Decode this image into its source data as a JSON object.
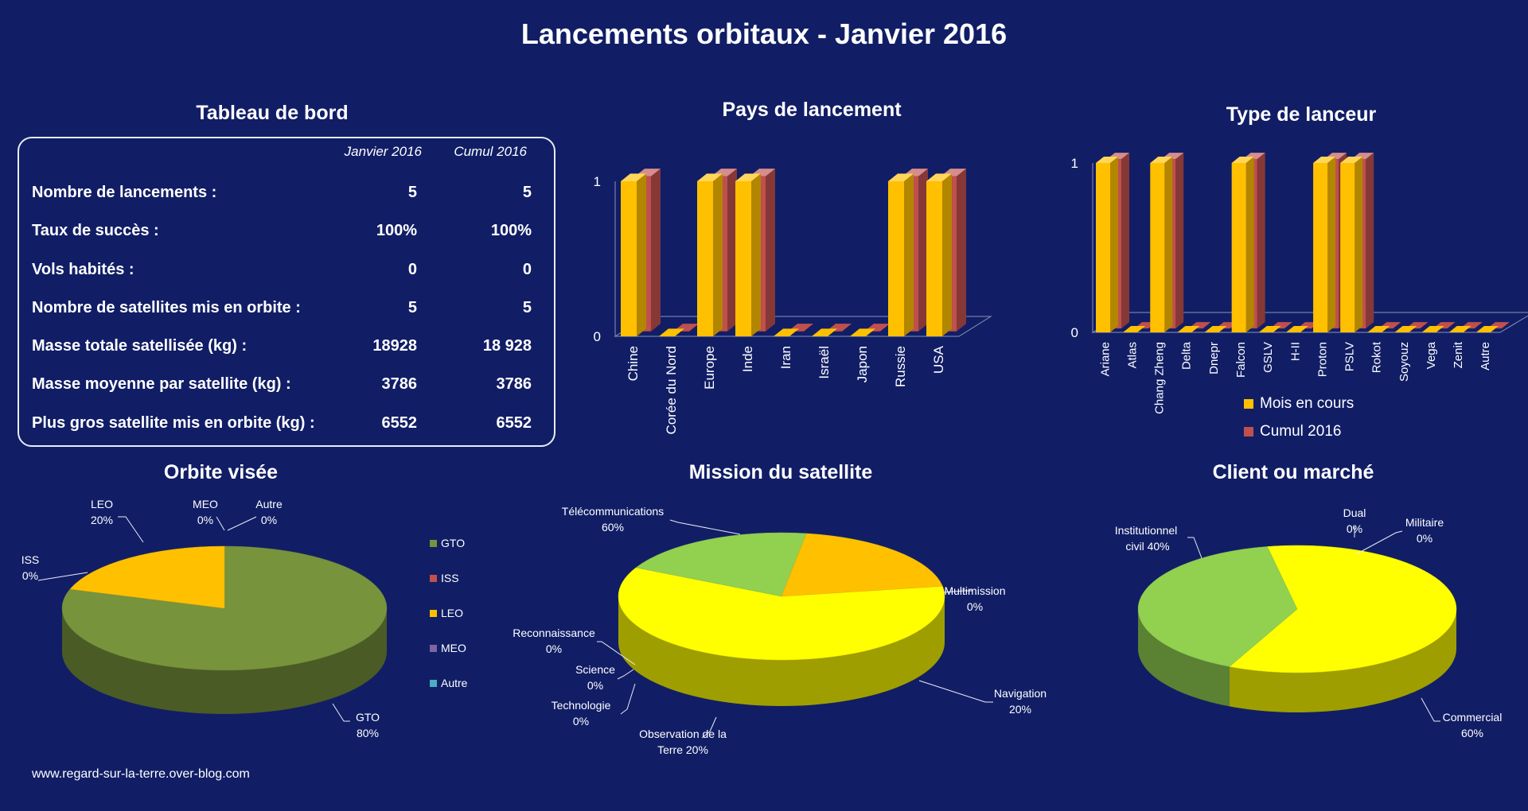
{
  "title": "Lancements orbitaux - Janvier 2016",
  "footer": "www.regard-sur-la-terre.over-blog.com",
  "colors": {
    "background": "#111e66",
    "mois": "#ffc000",
    "cumul": "#c0504d",
    "gto": "#77933c",
    "iss": "#c0504d",
    "leo": "#ffc000",
    "meo": "#8064a2",
    "autre": "#4bacc6",
    "yellow": "#ffff00",
    "green": "#92d050"
  },
  "dashboard": {
    "title": "Tableau de bord",
    "col1": "Janvier 2016",
    "col2": "Cumul 2016",
    "rows": [
      {
        "label": "Nombre de lancements :",
        "jan": "5",
        "cumul": "5"
      },
      {
        "label": "Taux de succès :",
        "jan": "100%",
        "cumul": "100%"
      },
      {
        "label": "Vols habités :",
        "jan": "0",
        "cumul": "0"
      },
      {
        "label": "Nombre de satellites mis en orbite :",
        "jan": "5",
        "cumul": "5"
      },
      {
        "label": "Masse totale satellisée (kg) :",
        "jan": "18928",
        "cumul": "18 928"
      },
      {
        "label": "Masse moyenne par satellite (kg) :",
        "jan": "3786",
        "cumul": "3786"
      },
      {
        "label": "Plus gros satellite mis en orbite (kg) :",
        "jan": "6552",
        "cumul": "6552"
      }
    ]
  },
  "chart_data": [
    {
      "type": "bar",
      "title": "Pays de lancement",
      "categories": [
        "Chine",
        "Corée du Nord",
        "Europe",
        "Inde",
        "Iran",
        "Israël",
        "Japon",
        "Russie",
        "USA"
      ],
      "series": [
        {
          "name": "Mois en cours",
          "values": [
            1,
            0,
            1,
            1,
            0,
            0,
            0,
            1,
            1
          ]
        },
        {
          "name": "Cumul 2016",
          "values": [
            1,
            0,
            1,
            1,
            0,
            0,
            0,
            1,
            1
          ]
        }
      ],
      "yticks": [
        "0",
        "1"
      ],
      "ylim": [
        0,
        1
      ]
    },
    {
      "type": "bar",
      "title": "Type de lanceur",
      "categories": [
        "Ariane",
        "Atlas",
        "Chang Zheng",
        "Delta",
        "Dnepr",
        "Falcon",
        "GSLV",
        "H-II",
        "Proton",
        "PSLV",
        "Rokot",
        "Soyouz",
        "Vega",
        "Zenit",
        "Autre"
      ],
      "series": [
        {
          "name": "Mois en cours",
          "values": [
            1,
            0,
            1,
            0,
            0,
            1,
            0,
            0,
            1,
            1,
            0,
            0,
            0,
            0,
            0
          ]
        },
        {
          "name": "Cumul 2016",
          "values": [
            1,
            0,
            1,
            0,
            0,
            1,
            0,
            0,
            1,
            1,
            0,
            0,
            0,
            0,
            0
          ]
        }
      ],
      "yticks": [
        "0",
        "1"
      ],
      "ylim": [
        0,
        1
      ],
      "legend": "bottom"
    },
    {
      "type": "pie",
      "title": "Orbite visée",
      "slices": [
        {
          "name": "GTO",
          "value": 80,
          "label": "GTO",
          "pct": "80%"
        },
        {
          "name": "ISS",
          "value": 0,
          "label": "ISS",
          "pct": "0%"
        },
        {
          "name": "LEO",
          "value": 20,
          "label": "LEO",
          "pct": "20%"
        },
        {
          "name": "MEO",
          "value": 0,
          "label": "MEO",
          "pct": "0%"
        },
        {
          "name": "Autre",
          "value": 0,
          "label": "Autre",
          "pct": "0%"
        }
      ],
      "legend": "right"
    },
    {
      "type": "pie",
      "title": "Mission du satellite",
      "slices": [
        {
          "name": "Télécommunications",
          "value": 60,
          "label": "Télécommunications",
          "pct": "60%"
        },
        {
          "name": "Multimission",
          "value": 0,
          "label": "Multimission",
          "pct": "0%"
        },
        {
          "name": "Navigation",
          "value": 20,
          "label": "Navigation",
          "pct": "20%"
        },
        {
          "name": "Observation de la Terre",
          "value": 20,
          "label": "Observation de la",
          "label2": "Terre 20%"
        },
        {
          "name": "Technologie",
          "value": 0,
          "label": "Technologie",
          "pct": "0%"
        },
        {
          "name": "Science",
          "value": 0,
          "label": "Science",
          "pct": "0%"
        },
        {
          "name": "Reconnaissance",
          "value": 0,
          "label": "Reconnaissance",
          "pct": "0%"
        }
      ]
    },
    {
      "type": "pie",
      "title": "Client ou marché",
      "slices": [
        {
          "name": "Commercial",
          "value": 60,
          "label": "Commercial",
          "pct": "60%"
        },
        {
          "name": "Institutionnel civil",
          "value": 40,
          "label": "Institutionnel",
          "label2": "civil 40%"
        },
        {
          "name": "Dual",
          "value": 0,
          "label": "Dual",
          "pct": "0%"
        },
        {
          "name": "Militaire",
          "value": 0,
          "label": "Militaire",
          "pct": "0%"
        }
      ]
    }
  ]
}
